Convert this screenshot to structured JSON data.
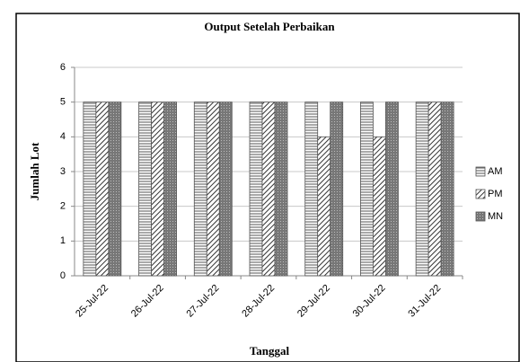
{
  "chart_data": {
    "type": "bar",
    "title": "Output Setelah Perbaikan",
    "x_label": "Tanggal",
    "y_label": "Jumlah Lot",
    "categories": [
      "25-Jul-22",
      "26-Jul-22",
      "27-Jul-22",
      "28-Jul-22",
      "29-Jul-22",
      "30-Jul-22",
      "31-Jul-22"
    ],
    "series": [
      {
        "name": "AM",
        "color": "#555555",
        "pattern": "horizontal",
        "values": [
          5,
          5,
          5,
          5,
          5,
          5,
          5
        ]
      },
      {
        "name": "PM",
        "color": "#555555",
        "pattern": "diagonal",
        "values": [
          5,
          5,
          5,
          5,
          4,
          4,
          5
        ]
      },
      {
        "name": "MN",
        "color": "#555555",
        "pattern": "dots",
        "values": [
          5,
          5,
          5,
          5,
          5,
          5,
          5
        ]
      }
    ],
    "ylim": [
      0,
      6
    ],
    "yticks": [
      0,
      1,
      2,
      3,
      4,
      5,
      6
    ],
    "grid": true,
    "legend": "right"
  }
}
